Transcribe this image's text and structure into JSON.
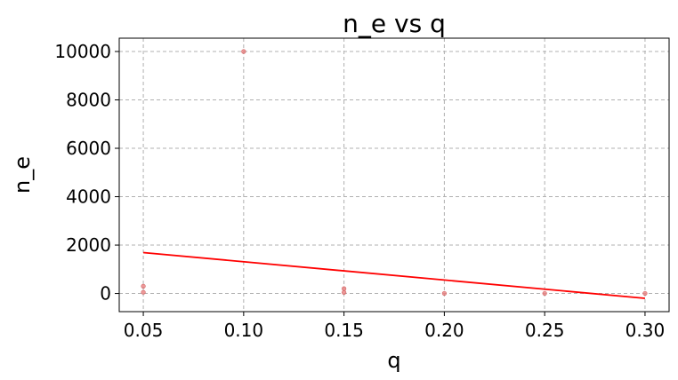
{
  "chart_data": {
    "type": "scatter",
    "title": "n_e vs q",
    "xlabel": "q",
    "ylabel": "n_e",
    "xlim": [
      0.038,
      0.312
    ],
    "ylim": [
      -750,
      10550
    ],
    "xticks": [
      0.05,
      0.1,
      0.15,
      0.2,
      0.25,
      0.3
    ],
    "xtick_labels": [
      "0.05",
      "0.10",
      "0.15",
      "0.20",
      "0.25",
      "0.30"
    ],
    "yticks": [
      0,
      2000,
      4000,
      6000,
      8000,
      10000
    ],
    "ytick_labels": [
      "0",
      "2000",
      "4000",
      "6000",
      "8000",
      "10000"
    ],
    "grid": true,
    "points": [
      {
        "x": 0.05,
        "y": 300
      },
      {
        "x": 0.05,
        "y": 50
      },
      {
        "x": 0.1,
        "y": 10000
      },
      {
        "x": 0.15,
        "y": 200
      },
      {
        "x": 0.15,
        "y": 40
      },
      {
        "x": 0.2,
        "y": 5
      },
      {
        "x": 0.25,
        "y": 5
      },
      {
        "x": 0.3,
        "y": 5
      }
    ],
    "trend_line": {
      "x": [
        0.05,
        0.3
      ],
      "y": [
        1690,
        -200
      ]
    },
    "colors": {
      "points": "#e88080",
      "point_edge": "#d06060",
      "line": "#ff0000",
      "grid": "#b0b0b0"
    }
  }
}
